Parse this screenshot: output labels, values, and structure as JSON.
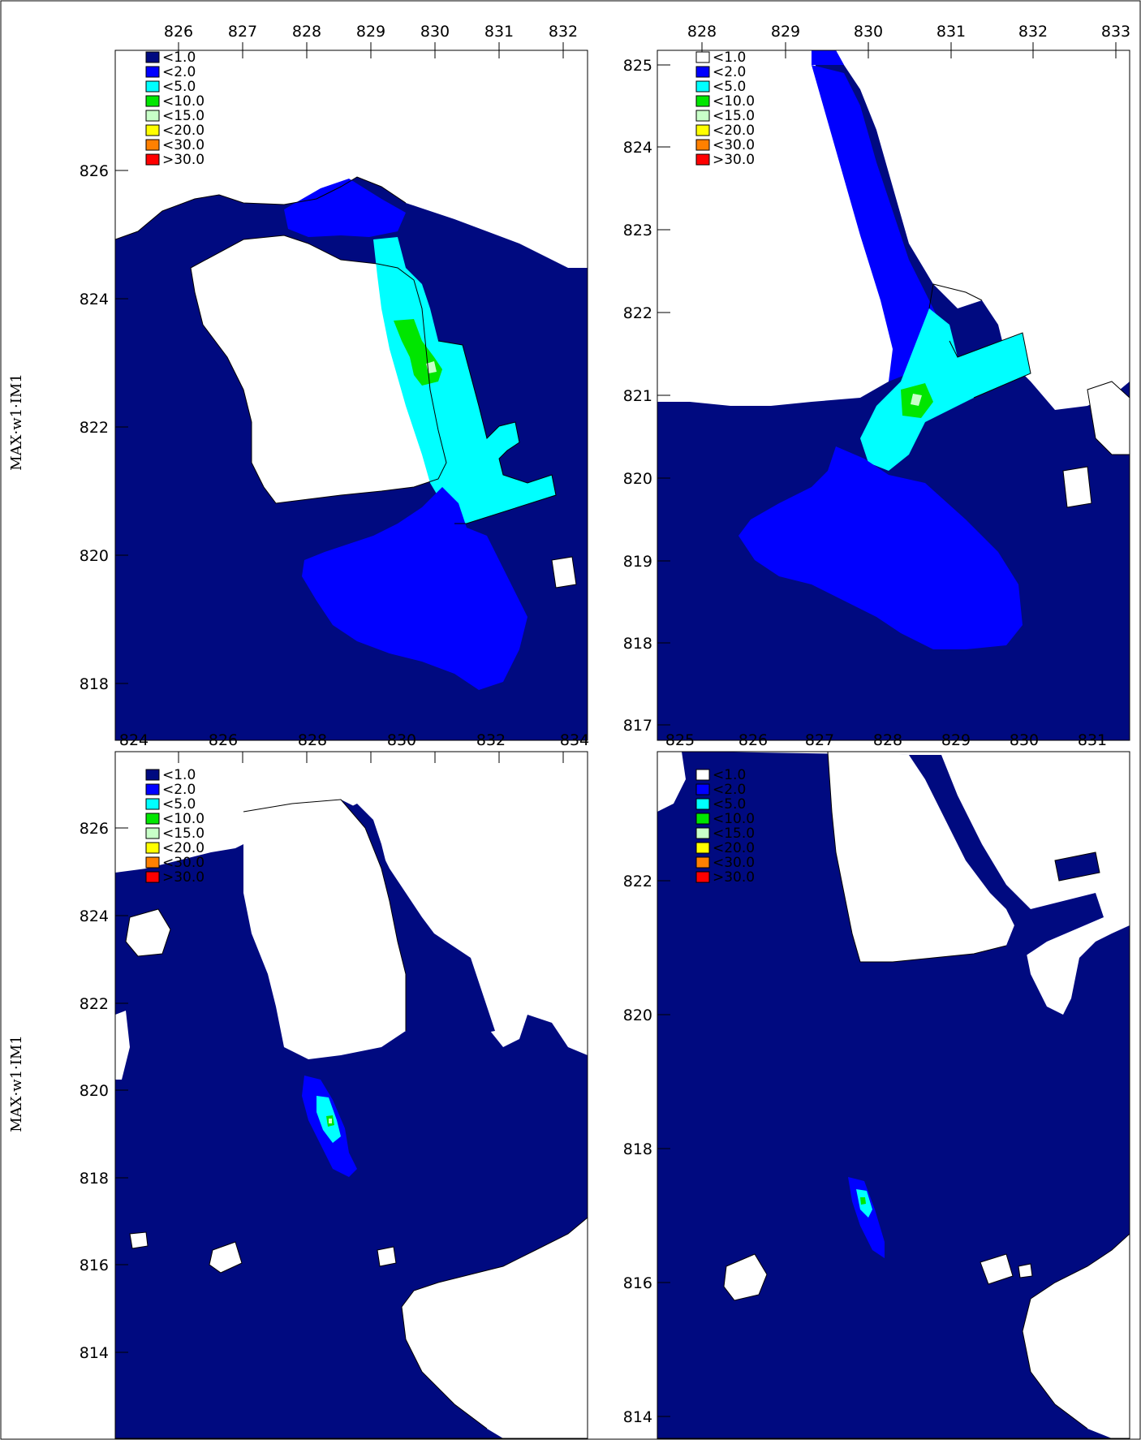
{
  "figure": {
    "side_label": "MAX·w1·IM1",
    "legend": [
      {
        "label": "<1.0",
        "color": "#000a80"
      },
      {
        "label": "<2.0",
        "color": "#0000ff"
      },
      {
        "label": "<5.0",
        "color": "#00ffff"
      },
      {
        "label": "<10.0",
        "color": "#00e600"
      },
      {
        "label": "<15.0",
        "color": "#c8ffc8"
      },
      {
        "label": "<20.0",
        "color": "#ffff00"
      },
      {
        "label": "<30.0",
        "color": "#ff8000"
      },
      {
        "label": ">30.0",
        "color": "#ff0000"
      }
    ]
  },
  "panels": [
    {
      "id": "top-left",
      "top_ticks": [
        "826",
        "827",
        "828",
        "829",
        "830",
        "831",
        "832"
      ],
      "bottom_ticks": [
        "824",
        "826",
        "828",
        "830",
        "832",
        "834"
      ],
      "left_ticks": [
        "826",
        "824",
        "822",
        "820",
        "818"
      ]
    },
    {
      "id": "top-right",
      "top_ticks": [
        "828",
        "829",
        "830",
        "831",
        "832",
        "833"
      ],
      "bottom_ticks": [
        "825",
        "826",
        "827",
        "828",
        "829",
        "830",
        "831"
      ],
      "left_ticks": [
        "825",
        "824",
        "823",
        "822",
        "821",
        "820",
        "819",
        "818",
        "817"
      ]
    },
    {
      "id": "bottom-left",
      "left_ticks": [
        "826",
        "824",
        "822",
        "820",
        "818",
        "816",
        "814"
      ]
    },
    {
      "id": "bottom-right",
      "left_ticks": [
        "822",
        "820",
        "818",
        "816",
        "814"
      ]
    }
  ]
}
